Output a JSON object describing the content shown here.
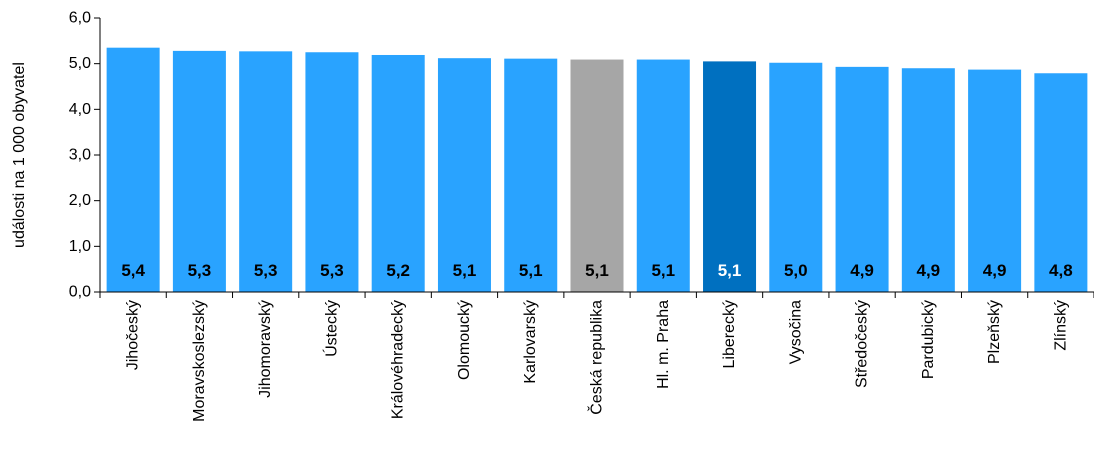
{
  "chart_data": {
    "type": "bar",
    "title": "",
    "ylabel": "události na 1 000 obyvatel",
    "xlabel": "",
    "ylim": [
      0,
      6
    ],
    "ytick_labels": [
      "0,0",
      "1,0",
      "2,0",
      "3,0",
      "4,0",
      "5,0",
      "6,0"
    ],
    "categories": [
      "Jihočeský",
      "Moravskoslezský",
      "Jihomoravský",
      "Ústecký",
      "Královéhradecký",
      "Olomoucký",
      "Karlovarský",
      "Česká republika",
      "Hl. m. Praha",
      "Liberecký",
      "Vysočina",
      "Středočeský",
      "Pardubický",
      "Plzeňský",
      "Zlínský"
    ],
    "values": [
      5.35,
      5.28,
      5.27,
      5.25,
      5.19,
      5.12,
      5.11,
      5.09,
      5.09,
      5.05,
      5.02,
      4.93,
      4.9,
      4.87,
      4.79
    ],
    "value_labels": [
      "5,4",
      "5,3",
      "5,3",
      "5,3",
      "5,2",
      "5,1",
      "5,1",
      "5,1",
      "5,1",
      "5,1",
      "5,0",
      "4,9",
      "4,9",
      "4,9",
      "4,8"
    ],
    "grid": false,
    "colors": {
      "default": "#29A3FF",
      "highlight_country": "#A6A6A6",
      "highlight_region": "#0070C0",
      "label_default": "#000000",
      "label_highlight_region": "#FFFFFF"
    },
    "highlight": {
      "Česká republika": "highlight_country",
      "Liberecký": "highlight_region"
    }
  }
}
